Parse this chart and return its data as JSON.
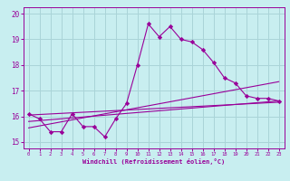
{
  "xlabel": "Windchill (Refroidissement éolien,°C)",
  "background_color": "#c8eef0",
  "grid_color": "#aad4d8",
  "line_color": "#990099",
  "xlim": [
    -0.5,
    23.5
  ],
  "ylim": [
    14.75,
    20.25
  ],
  "yticks": [
    15,
    16,
    17,
    18,
    19,
    20
  ],
  "xticks": [
    0,
    1,
    2,
    3,
    4,
    5,
    6,
    7,
    8,
    9,
    10,
    11,
    12,
    13,
    14,
    15,
    16,
    17,
    18,
    19,
    20,
    21,
    22,
    23
  ],
  "series": [
    {
      "x": [
        0,
        1,
        2,
        3,
        4,
        5,
        6,
        7,
        8,
        9,
        10,
        11,
        12,
        13,
        14,
        15,
        16,
        17,
        18,
        19,
        20,
        21,
        22,
        23
      ],
      "y": [
        16.1,
        15.9,
        15.4,
        15.4,
        16.1,
        15.6,
        15.6,
        15.2,
        15.9,
        16.5,
        18.0,
        19.6,
        19.1,
        19.5,
        19.0,
        18.9,
        18.6,
        18.1,
        17.5,
        17.3,
        16.8,
        16.7,
        16.7,
        16.6
      ],
      "marker": "D",
      "markersize": 2.2,
      "linewidth": 0.8
    },
    {
      "x": [
        0,
        23
      ],
      "y": [
        15.8,
        16.6
      ],
      "marker": null,
      "linewidth": 0.8
    },
    {
      "x": [
        0,
        23
      ],
      "y": [
        15.55,
        17.35
      ],
      "marker": null,
      "linewidth": 0.8
    },
    {
      "x": [
        0,
        23
      ],
      "y": [
        16.05,
        16.55
      ],
      "marker": null,
      "linewidth": 0.8
    }
  ]
}
